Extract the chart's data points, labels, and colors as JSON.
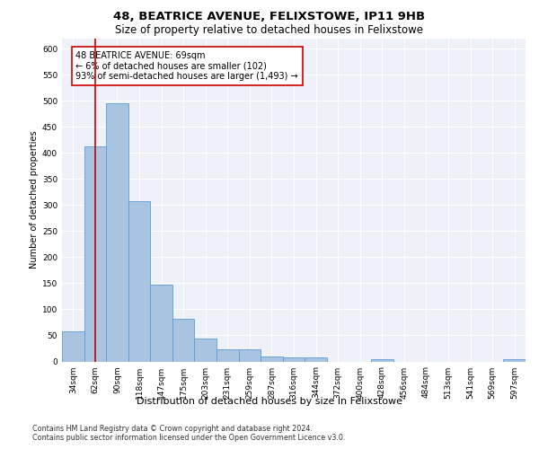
{
  "title": "48, BEATRICE AVENUE, FELIXSTOWE, IP11 9HB",
  "subtitle": "Size of property relative to detached houses in Felixstowe",
  "xlabel": "Distribution of detached houses by size in Felixstowe",
  "ylabel": "Number of detached properties",
  "categories": [
    "34sqm",
    "62sqm",
    "90sqm",
    "118sqm",
    "147sqm",
    "175sqm",
    "203sqm",
    "231sqm",
    "259sqm",
    "287sqm",
    "316sqm",
    "344sqm",
    "372sqm",
    "400sqm",
    "428sqm",
    "456sqm",
    "484sqm",
    "513sqm",
    "541sqm",
    "569sqm",
    "597sqm"
  ],
  "values": [
    57,
    412,
    495,
    307,
    148,
    81,
    44,
    24,
    24,
    10,
    7,
    7,
    0,
    0,
    5,
    0,
    0,
    0,
    0,
    0,
    5
  ],
  "bar_color": "#a8c4e0",
  "bar_edge_color": "#5b9bd5",
  "vline_x": 1.0,
  "vline_color": "#cc0000",
  "annotation_text": "48 BEATRICE AVENUE: 69sqm\n← 6% of detached houses are smaller (102)\n93% of semi-detached houses are larger (1,493) →",
  "annotation_box_color": "#ffffff",
  "annotation_box_edge": "#cc0000",
  "ylim": [
    0,
    620
  ],
  "yticks": [
    0,
    50,
    100,
    150,
    200,
    250,
    300,
    350,
    400,
    450,
    500,
    550,
    600
  ],
  "bg_color": "#eef2f8",
  "grid_color": "#ffffff",
  "fig_bg_color": "#ffffff",
  "footer_text": "Contains HM Land Registry data © Crown copyright and database right 2024.\nContains public sector information licensed under the Open Government Licence v3.0.",
  "title_fontsize": 9.5,
  "subtitle_fontsize": 8.5,
  "xlabel_fontsize": 8,
  "ylabel_fontsize": 7,
  "tick_fontsize": 6.5,
  "annotation_fontsize": 7,
  "footer_fontsize": 5.8
}
